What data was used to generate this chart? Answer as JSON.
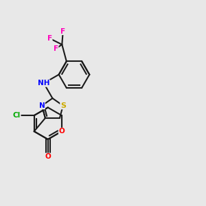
{
  "bg_color": "#e8e8e8",
  "bond_color": "#1a1a1a",
  "colors": {
    "N": "#0000ff",
    "O": "#ff0000",
    "S": "#ccaa00",
    "Cl": "#00aa00",
    "F": "#ff00bb",
    "H": "#008888",
    "C": "#1a1a1a"
  }
}
